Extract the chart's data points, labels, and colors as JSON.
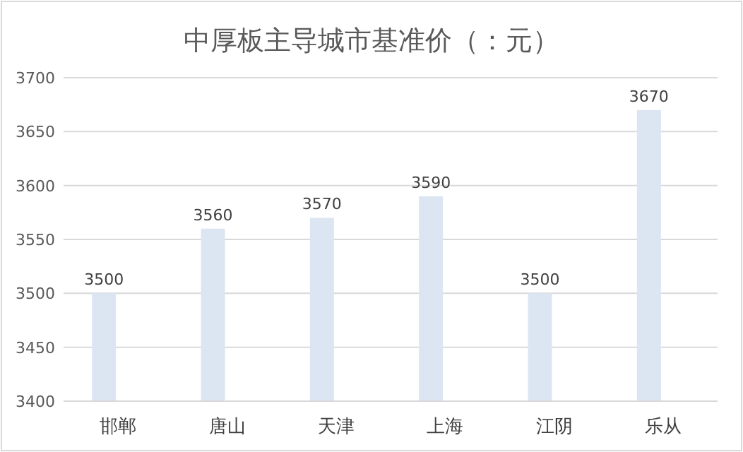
{
  "chart_data": {
    "type": "bar",
    "title": "中厚板主导城市基准价（：元）",
    "categories": [
      "邯郸",
      "唐山",
      "天津",
      "上海",
      "江阴",
      "乐从"
    ],
    "values": [
      3500,
      3560,
      3570,
      3590,
      3500,
      3670
    ],
    "color": "#dce6f2",
    "ylim": [
      3400,
      3700
    ],
    "yticks": [
      3400,
      3450,
      3500,
      3550,
      3600,
      3650,
      3700
    ],
    "grid": "y",
    "data_labels": true
  }
}
